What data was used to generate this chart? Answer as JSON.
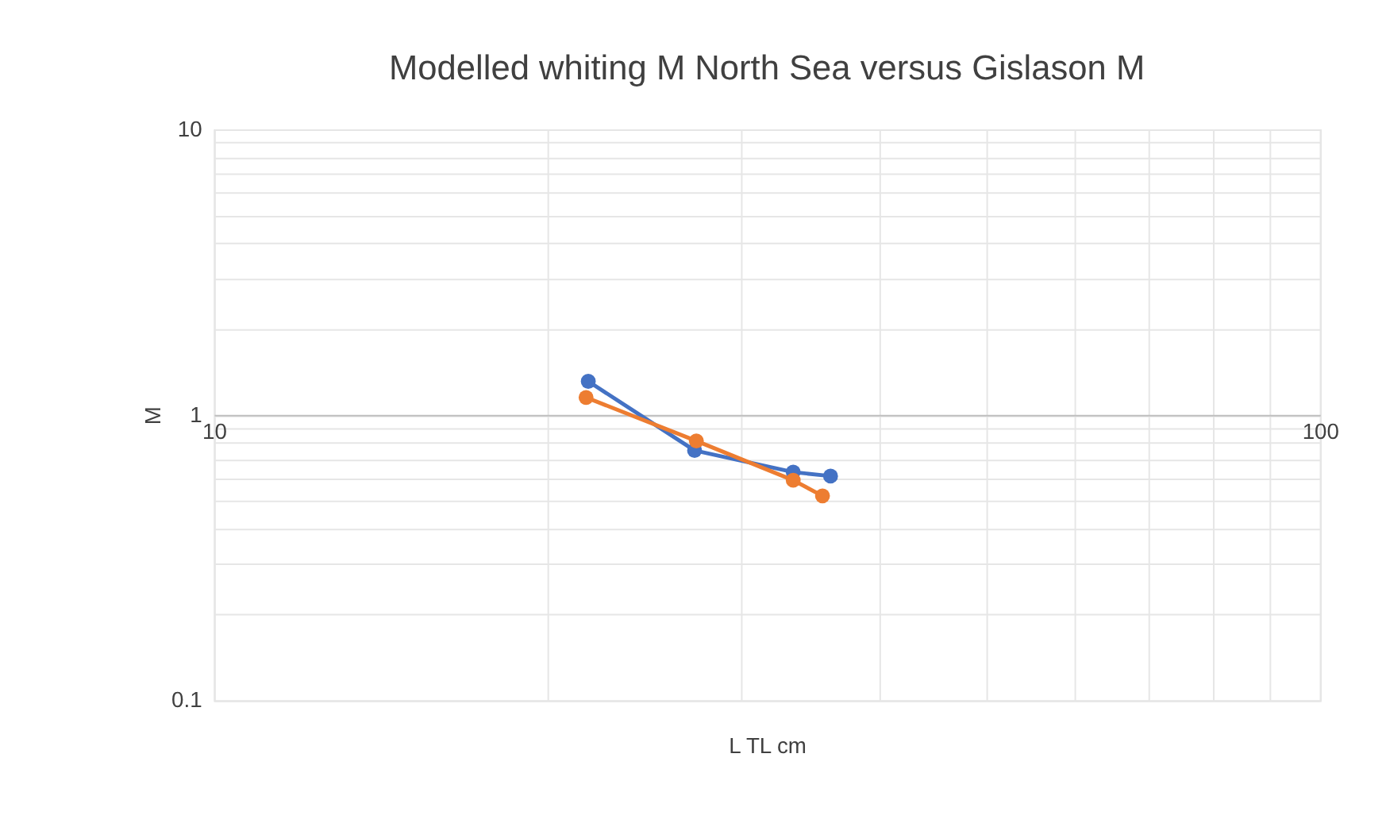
{
  "chart_data": {
    "type": "line",
    "title": "Modelled whiting M North Sea versus Gislason M",
    "xlabel": "L TL cm",
    "ylabel": "M",
    "log": "xy",
    "grid": true,
    "marker": "circle",
    "line_style": "solid",
    "legend": false,
    "xlim": [
      10,
      100
    ],
    "ylim": [
      0.1,
      10
    ],
    "xticks": [
      10,
      {
        "value": 20,
        "label": null
      },
      {
        "value": 30,
        "label": null
      },
      {
        "value": 40,
        "label": null
      },
      {
        "value": 50,
        "label": null
      },
      {
        "value": 60,
        "label": null
      },
      {
        "value": 70,
        "label": null
      },
      {
        "value": 80,
        "label": null
      },
      {
        "value": 90,
        "label": null
      },
      100
    ],
    "yticks": [
      0.1,
      {
        "value": 0.2,
        "label": null
      },
      {
        "value": 0.3,
        "label": null
      },
      {
        "value": 0.4,
        "label": null
      },
      {
        "value": 0.5,
        "label": null
      },
      {
        "value": 0.6,
        "label": null
      },
      {
        "value": 0.7,
        "label": null
      },
      {
        "value": 0.8,
        "label": null
      },
      {
        "value": 0.9,
        "label": null
      },
      1,
      {
        "value": 2,
        "label": null
      },
      {
        "value": 3,
        "label": null
      },
      {
        "value": 4,
        "label": null
      },
      {
        "value": 5,
        "label": null
      },
      {
        "value": 6,
        "label": null
      },
      {
        "value": 7,
        "label": null
      },
      {
        "value": 8,
        "label": null
      },
      {
        "value": 9,
        "label": null
      },
      10
    ],
    "series": [
      {
        "color": "#4472c4",
        "x": [
          21.8,
          27.2,
          33.4,
          36.1
        ],
        "values": [
          1.31,
          0.75,
          0.63,
          0.61
        ]
      },
      {
        "color": "#ed7d31",
        "x": [
          21.7,
          27.3,
          33.4,
          35.5
        ],
        "values": [
          1.15,
          0.81,
          0.59,
          0.52
        ]
      }
    ]
  }
}
